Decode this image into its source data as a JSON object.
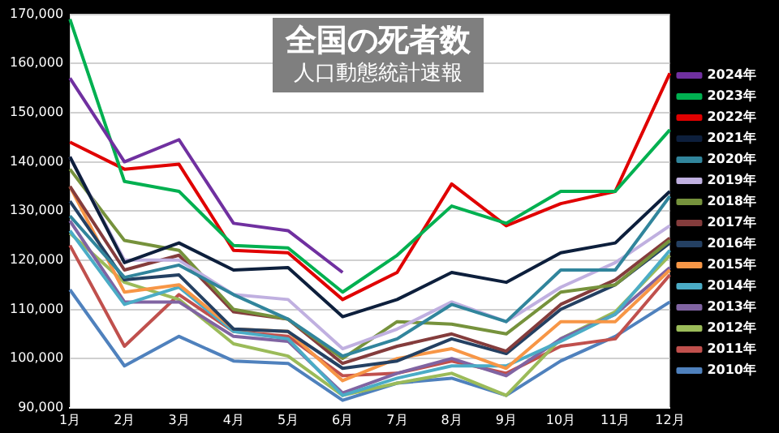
{
  "chart_data": {
    "type": "line",
    "title": "全国の死者数",
    "subtitle": "人口動態統計速報",
    "categories": [
      "1月",
      "2月",
      "3月",
      "4月",
      "5月",
      "6月",
      "7月",
      "8月",
      "9月",
      "10月",
      "11月",
      "12月"
    ],
    "series": [
      {
        "name": "2024年",
        "color": "#7030a0",
        "values": [
          157000,
          140000,
          144500,
          127500,
          126000,
          117500,
          null,
          null,
          null,
          null,
          null,
          null
        ]
      },
      {
        "name": "2023年",
        "color": "#00b050",
        "values": [
          169000,
          136000,
          134000,
          123000,
          122500,
          113500,
          121000,
          131000,
          127500,
          134000,
          134000,
          146500
        ]
      },
      {
        "name": "2022年",
        "color": "#e00000",
        "values": [
          144000,
          138500,
          139500,
          122000,
          121500,
          112000,
          117500,
          135500,
          127000,
          131500,
          134000,
          158000
        ]
      },
      {
        "name": "2021年",
        "color": "#0d1f3c",
        "values": [
          141000,
          119500,
          123500,
          118000,
          118500,
          108500,
          112000,
          117500,
          115500,
          121500,
          123500,
          134000
        ]
      },
      {
        "name": "2020年",
        "color": "#31859c",
        "values": [
          129000,
          116500,
          119000,
          113000,
          108000,
          100500,
          104000,
          111000,
          107500,
          118000,
          118000,
          133000
        ]
      },
      {
        "name": "2019年",
        "color": "#c0b0e0",
        "values": [
          141000,
          120000,
          120000,
          113000,
          112000,
          102000,
          106000,
          111500,
          107500,
          114500,
          119500,
          127000
        ]
      },
      {
        "name": "2018年",
        "color": "#76923c",
        "values": [
          138500,
          124000,
          122000,
          110000,
          108000,
          100000,
          107500,
          107000,
          105000,
          113500,
          115000,
          124000
        ]
      },
      {
        "name": "2017年",
        "color": "#843c3c",
        "values": [
          135000,
          118000,
          121000,
          109500,
          108000,
          99000,
          102500,
          105000,
          101500,
          111000,
          116000,
          124500
        ]
      },
      {
        "name": "2016年",
        "color": "#244062",
        "values": [
          132000,
          116000,
          117000,
          106000,
          105500,
          98000,
          99500,
          104000,
          101000,
          110000,
          115000,
          123500
        ]
      },
      {
        "name": "2015年",
        "color": "#f79646",
        "values": [
          135000,
          113500,
          115000,
          106000,
          105500,
          95500,
          100000,
          102000,
          98000,
          107500,
          107500,
          118000
        ]
      },
      {
        "name": "2014年",
        "color": "#4bacc6",
        "values": [
          126000,
          111000,
          114500,
          105500,
          104000,
          92500,
          96000,
          98500,
          98500,
          103500,
          109000,
          122000
        ]
      },
      {
        "name": "2013年",
        "color": "#8064a2",
        "values": [
          128000,
          111500,
          111500,
          104500,
          103500,
          93000,
          97000,
          100000,
          96500,
          104000,
          109000,
          118500
        ]
      },
      {
        "name": "2012年",
        "color": "#9bbb59",
        "values": [
          125500,
          115500,
          112000,
          103000,
          100500,
          92500,
          95000,
          97000,
          92500,
          104000,
          109500,
          121000
        ]
      },
      {
        "name": "2011年",
        "color": "#c0504d",
        "values": [
          123000,
          102500,
          113000,
          105500,
          104500,
          96500,
          97000,
          99500,
          97000,
          102500,
          104000,
          117000
        ]
      },
      {
        "name": "2010年",
        "color": "#4f81bd",
        "values": [
          114000,
          98500,
          104500,
          99500,
          99000,
          91500,
          95000,
          96000,
          92500,
          99500,
          104500,
          111500
        ]
      }
    ],
    "ylim": [
      90000,
      170000
    ],
    "yticks": [
      {
        "value": 90000,
        "label": "90,000"
      },
      {
        "value": 100000,
        "label": "100,000"
      },
      {
        "value": 110000,
        "label": "110,000"
      },
      {
        "value": 120000,
        "label": "120,000"
      },
      {
        "value": 130000,
        "label": "130,000"
      },
      {
        "value": 140000,
        "label": "140,000"
      },
      {
        "value": 150000,
        "label": "150,000"
      },
      {
        "value": 160000,
        "label": "160,000"
      },
      {
        "value": 170000,
        "label": "170,000"
      }
    ],
    "grid": "y",
    "legend": "right",
    "marker": "none",
    "line_style": "solid"
  }
}
